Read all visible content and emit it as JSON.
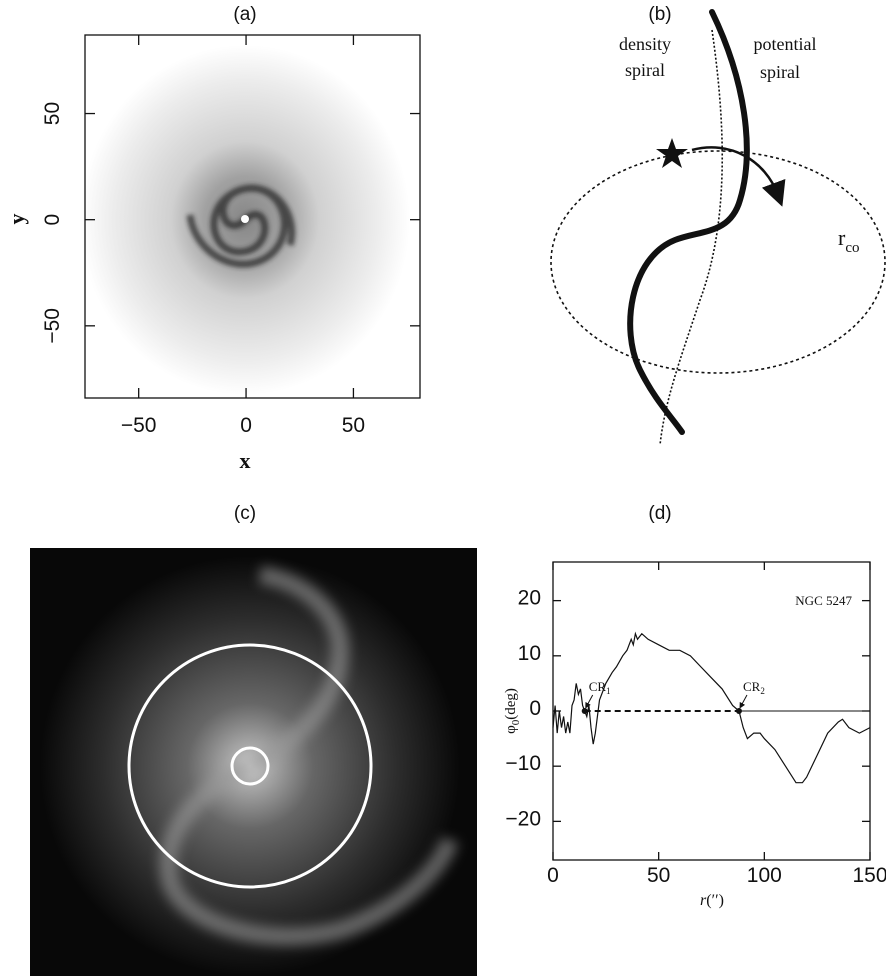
{
  "chart_data": [
    {
      "type": "scatter",
      "title": "(a)",
      "x_label": "x",
      "y_label": "y",
      "xlim": [
        -75,
        81
      ],
      "ylim": [
        -84,
        87
      ],
      "xticks": [
        {
          "value": -50,
          "label": "−50"
        },
        0,
        50
      ],
      "yticks": [
        {
          "value": -50,
          "label": "−50"
        },
        0,
        50
      ]
    },
    {
      "type": "line",
      "title": "(d)",
      "annotation": "NGC 5247",
      "x_label": {
        "main": "r",
        "rest": "(′′)"
      },
      "y_label": {
        "main": "φ",
        "sub": "0",
        "rest": "(deg)"
      },
      "xlim": [
        0,
        150
      ],
      "ylim": [
        -27,
        27
      ],
      "xticks": [
        0,
        50,
        100,
        150
      ],
      "yticks": [
        {
          "value": -20,
          "label": "−20"
        },
        {
          "value": -10,
          "label": "−10"
        },
        0,
        10,
        20
      ],
      "color": "#111111",
      "x": [
        0,
        1,
        2,
        3,
        4,
        5,
        6,
        7,
        8,
        9,
        10,
        11,
        12,
        13,
        14,
        15,
        16,
        17,
        18,
        19,
        20,
        21,
        22,
        25,
        28,
        30,
        33,
        35,
        37,
        38,
        39,
        40,
        42,
        45,
        50,
        55,
        60,
        65,
        70,
        75,
        80,
        85,
        88,
        90,
        92,
        95,
        98,
        100,
        105,
        110,
        115,
        118,
        120,
        125,
        130,
        135,
        137,
        140,
        145,
        150
      ],
      "values": [
        -3,
        1,
        -4,
        0,
        -3,
        -1,
        -4,
        -2,
        -4,
        1,
        2,
        5,
        3,
        4,
        1,
        0,
        -1,
        1,
        -3,
        -6,
        -4,
        -1,
        2,
        5,
        7,
        8,
        10,
        11,
        13,
        12,
        14,
        13,
        14,
        13,
        12,
        11,
        11,
        10,
        8,
        6,
        4,
        1,
        0,
        -3,
        -5,
        -4,
        -4,
        -5,
        -7,
        -10,
        -13,
        -13,
        -12,
        -8,
        -4,
        -2,
        -1.5,
        -3,
        -4,
        -3
      ],
      "crossings": [
        {
          "main": "CR",
          "sub": "1",
          "x": 15,
          "y": 0
        },
        {
          "main": "CR",
          "sub": "2",
          "x": 88,
          "y": 0
        }
      ]
    }
  ],
  "diagram": {
    "title": "(b)",
    "density_label": [
      "density",
      "spiral"
    ],
    "potential_label": [
      "potential",
      "spiral"
    ],
    "radius_label": {
      "main": "r",
      "sub": "co"
    }
  },
  "image": {
    "title": "(c)"
  }
}
